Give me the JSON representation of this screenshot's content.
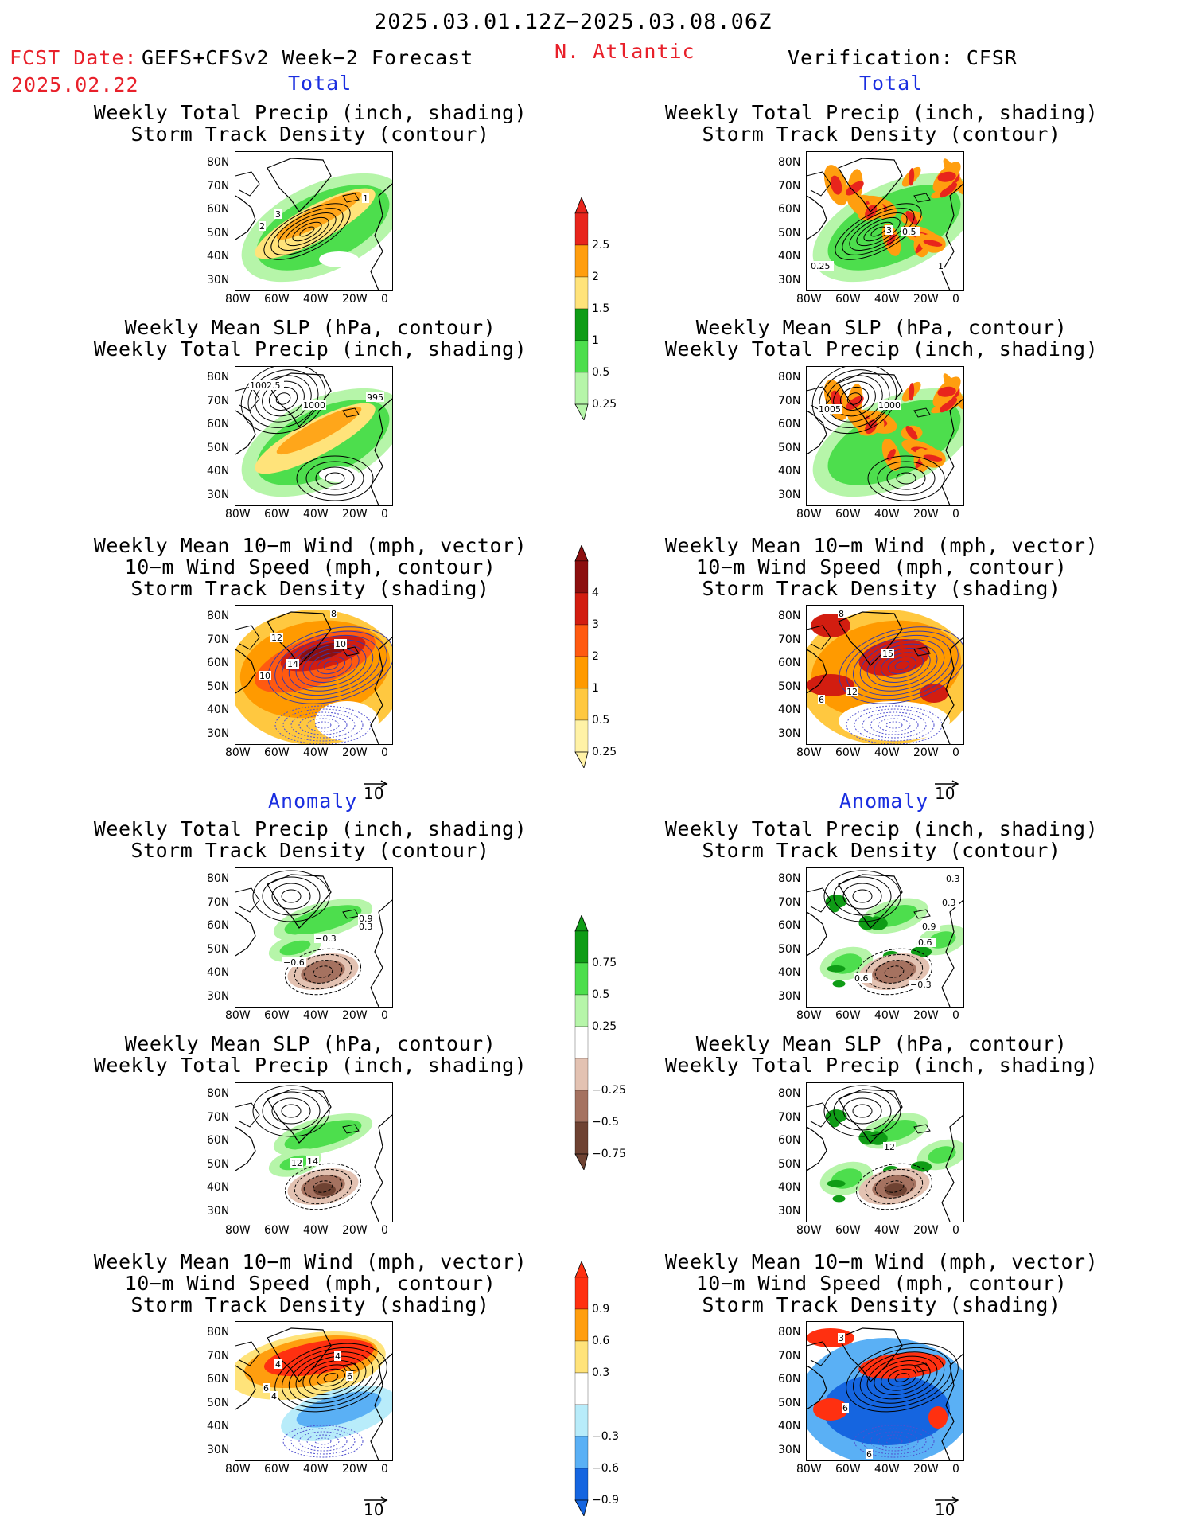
{
  "header": {
    "date_range": "2025.03.01.12Z−2025.03.08.06Z",
    "fcst_label": "FCST Date:",
    "fcst_model": "GEFS+CFSv2 Week−2 Forecast",
    "fcst_date": "2025.02.22",
    "region": "N. Atlantic",
    "verification": "Verification: CFSR"
  },
  "sections": {
    "total": "Total",
    "anomaly": "Anomaly"
  },
  "panel_titles": {
    "precip_storm": [
      "Weekly Total Precip (inch, shading)",
      "Storm Track Density (contour)"
    ],
    "slp_precip": [
      "Weekly Mean SLP (hPa, contour)",
      "Weekly Total Precip (inch, shading)"
    ],
    "wind_storm": [
      "Weekly Mean 10−m Wind (mph, vector)",
      "10−m Wind Speed (mph, contour)",
      "Storm Track Density (shading)"
    ]
  },
  "axes": {
    "lat_ticks": [
      "80N",
      "70N",
      "60N",
      "50N",
      "40N",
      "30N"
    ],
    "lon_ticks": [
      "80W",
      "60W",
      "40W",
      "20W",
      "0"
    ]
  },
  "vector_ref": "10",
  "colorbars": [
    {
      "name": "precip-total",
      "labels": [
        "2.5",
        "2",
        "1.5",
        "1",
        "0.5",
        "0.25"
      ],
      "colors": [
        "#e8251c",
        "#ff9e0f",
        "#ffe37a",
        "#0f9c16",
        "#4dde4d",
        "#b6f5a9"
      ]
    },
    {
      "name": "storm-total",
      "labels": [
        "4",
        "3",
        "2",
        "1",
        "0.5",
        "0.25"
      ],
      "colors": [
        "#8c0f0f",
        "#d21d10",
        "#ff5a10",
        "#ff9a00",
        "#ffc840",
        "#fff2a6"
      ]
    },
    {
      "name": "precip-anom",
      "labels": [
        "0.75",
        "0.5",
        "0.25",
        "−0.25",
        "−0.5",
        "−0.75"
      ],
      "colors": [
        "#0f9c16",
        "#4dde4d",
        "#b6f5a9",
        "#ffffff",
        "#e3c2b2",
        "#a57260",
        "#6e4232"
      ]
    },
    {
      "name": "storm-anom",
      "labels": [
        "0.9",
        "0.6",
        "0.3",
        "−0.3",
        "−0.6",
        "−0.9"
      ],
      "colors": [
        "#ff3010",
        "#ff9e0f",
        "#ffe37a",
        "#ffffff",
        "#b8ecfa",
        "#5ab0f5",
        "#1565e0"
      ]
    }
  ],
  "map_labels": {
    "r1_left": [
      "3",
      "2",
      "1"
    ],
    "r1_right": [
      "3",
      "0.5",
      "1",
      "0.25"
    ],
    "r2_left": [
      "1002.5",
      "1000",
      "995"
    ],
    "r2_right": [
      "1005",
      "1000"
    ],
    "r3_left": [
      "8",
      "12",
      "10",
      "14",
      "10"
    ],
    "r3_right": [
      "8",
      "15",
      "6",
      "12"
    ],
    "r4_left": [
      "0.9",
      "0.3",
      "−0.3",
      "−0.6"
    ],
    "r4_right": [
      "0.3",
      "0.3",
      "0.9",
      "0.6",
      "0.6",
      "−0.3"
    ],
    "r5_left": [
      "12",
      "14"
    ],
    "r5_right": [
      "12"
    ],
    "r6_left": [
      "4",
      "4",
      "4",
      "6",
      "6"
    ],
    "r6_right": [
      "3",
      "6",
      "6"
    ]
  }
}
